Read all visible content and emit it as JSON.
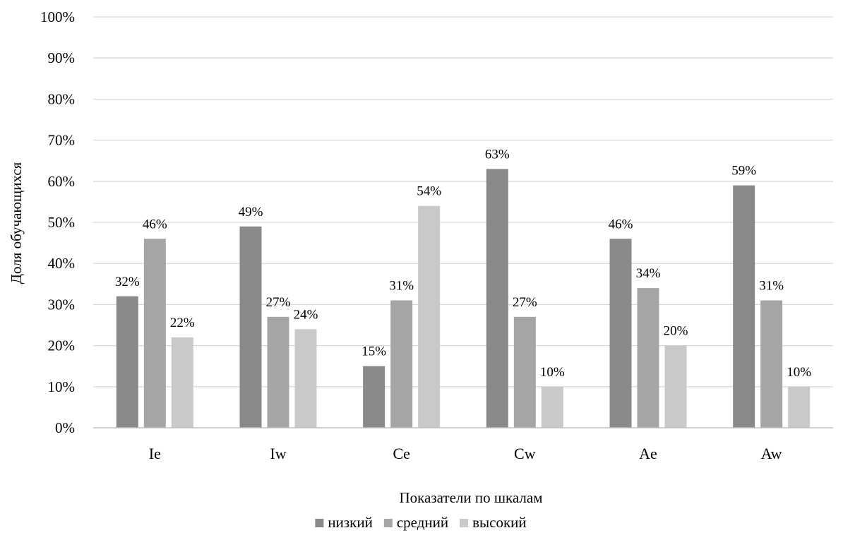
{
  "chart_data": {
    "type": "bar",
    "title": "",
    "xlabel": "Показатели по шкалам",
    "ylabel": "Доля обучающихся",
    "categories": [
      "Ie",
      "Iw",
      "Ce",
      "Cw",
      "Ae",
      "Aw"
    ],
    "series": [
      {
        "name": "низкий",
        "color": "#898989",
        "values": [
          32,
          49,
          15,
          63,
          46,
          59
        ]
      },
      {
        "name": "средний",
        "color": "#a5a5a5",
        "values": [
          46,
          27,
          31,
          27,
          34,
          31
        ]
      },
      {
        "name": "высокий",
        "color": "#c9c9c9",
        "values": [
          22,
          24,
          54,
          10,
          20,
          10
        ]
      }
    ],
    "ylim": [
      0,
      100
    ],
    "y_ticks": [
      "0%",
      "10%",
      "20%",
      "30%",
      "40%",
      "50%",
      "60%",
      "70%",
      "80%",
      "90%",
      "100%"
    ],
    "value_suffix": "%",
    "grid": true,
    "legend_position": "bottom"
  }
}
